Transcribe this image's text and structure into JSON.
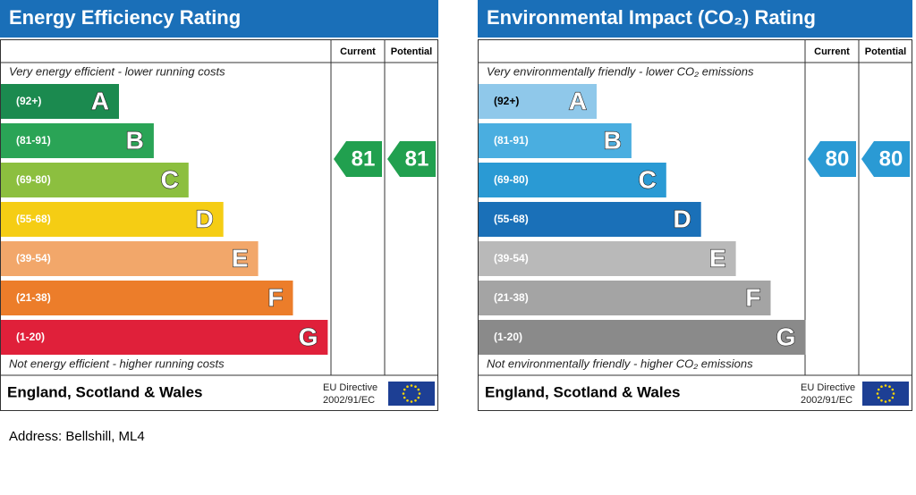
{
  "panels": [
    {
      "title": "Energy Efficiency Rating",
      "headers": [
        "Current",
        "Potential"
      ],
      "top_note": "Very energy efficient - lower running costs",
      "bottom_note": "Not energy efficient - higher running costs",
      "bands": [
        {
          "range": "(92+)",
          "letter": "A",
          "color": "#1b8a4f",
          "text_color": "#ffffff"
        },
        {
          "range": "(81-91)",
          "letter": "B",
          "color": "#2aa456",
          "text_color": "#ffffff"
        },
        {
          "range": "(69-80)",
          "letter": "C",
          "color": "#8cbf3f",
          "text_color": "#ffffff"
        },
        {
          "range": "(55-68)",
          "letter": "D",
          "color": "#f5cd14",
          "text_color": "#ffffff"
        },
        {
          "range": "(39-54)",
          "letter": "E",
          "color": "#f2a76a",
          "text_color": "#ffffff"
        },
        {
          "range": "(21-38)",
          "letter": "F",
          "color": "#ec7d2a",
          "text_color": "#ffffff"
        },
        {
          "range": "(1-20)",
          "letter": "G",
          "color": "#e0203a",
          "text_color": "#ffffff"
        }
      ],
      "current": 81,
      "current_color": "#21a04f",
      "potential": 81,
      "potential_color": "#21a04f",
      "footer": "England, Scotland & Wales",
      "directive": [
        "EU Directive",
        "2002/91/EC"
      ]
    },
    {
      "title": "Environmental Impact (CO₂) Rating",
      "headers": [
        "Current",
        "Potential"
      ],
      "top_note": "Very environmentally friendly - lower CO₂ emissions",
      "bottom_note": "Not environmentally friendly - higher CO₂ emissions",
      "bands": [
        {
          "range": "(92+)",
          "letter": "A",
          "color": "#8fc8ea",
          "text_color": "#000000"
        },
        {
          "range": "(81-91)",
          "letter": "B",
          "color": "#4aaee0",
          "text_color": "#ffffff"
        },
        {
          "range": "(69-80)",
          "letter": "C",
          "color": "#2a9ad4",
          "text_color": "#ffffff"
        },
        {
          "range": "(55-68)",
          "letter": "D",
          "color": "#1a70b8",
          "text_color": "#ffffff"
        },
        {
          "range": "(39-54)",
          "letter": "E",
          "color": "#b9b9b9",
          "text_color": "#ffffff"
        },
        {
          "range": "(21-38)",
          "letter": "F",
          "color": "#a4a4a4",
          "text_color": "#ffffff"
        },
        {
          "range": "(1-20)",
          "letter": "G",
          "color": "#8a8a8a",
          "text_color": "#ffffff"
        }
      ],
      "current": 80,
      "current_color": "#2a9ad4",
      "potential": 80,
      "potential_color": "#2a9ad4",
      "footer": "England, Scotland & Wales",
      "directive": [
        "EU Directive",
        "2002/91/EC"
      ]
    }
  ],
  "address": "Address: Bellshill, ML4"
}
